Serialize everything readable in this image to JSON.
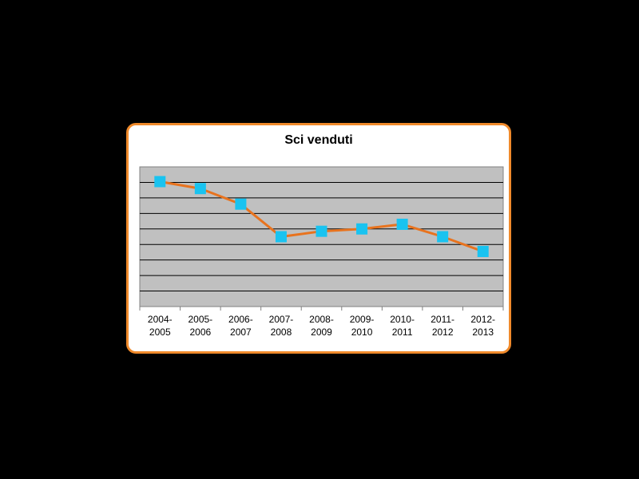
{
  "chart_data": {
    "type": "line",
    "title": "Sci venduti",
    "categories": [
      [
        "2004-",
        "2005"
      ],
      [
        "2005-",
        "2006"
      ],
      [
        "2006-",
        "2007"
      ],
      [
        "2007-",
        "2008"
      ],
      [
        "2008-",
        "2009"
      ],
      [
        "2009-",
        "2010"
      ],
      [
        "2010-",
        "2011"
      ],
      [
        "2011-",
        "2012"
      ],
      [
        "2012-",
        "2013"
      ]
    ],
    "values": [
      8.05,
      7.6,
      6.6,
      4.5,
      4.85,
      5.0,
      5.3,
      4.5,
      3.55
    ],
    "ylim": [
      0,
      9
    ],
    "grid": true,
    "legend": "none",
    "colors": {
      "line": "#e8731e",
      "marker": "#19c3f0",
      "plot_bg": "#c0c0c0",
      "card_border": "#f08a2b"
    }
  }
}
